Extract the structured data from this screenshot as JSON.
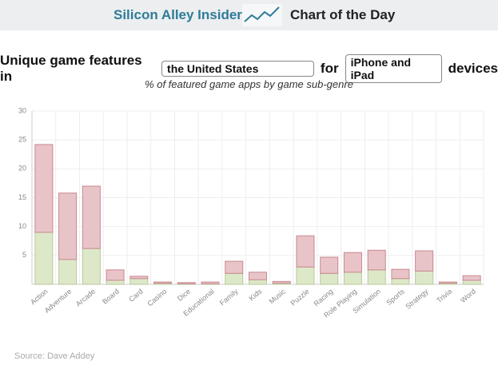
{
  "header": {
    "brand": "Silicon Alley Insider",
    "section": "Chart of the Day"
  },
  "chart_data": {
    "type": "bar",
    "stacked": true,
    "title": [
      "Unique game features in",
      "the United States",
      "for",
      "iPhone and iPad",
      "devices"
    ],
    "subtitle": "% of featured game apps by game sub-genre",
    "categories": [
      "Action",
      "Adventure",
      "Arcade",
      "Board",
      "Card",
      "Casino",
      "Dice",
      "Educational",
      "Family",
      "Kids",
      "Music",
      "Puzzle",
      "Racing",
      "Role Playing",
      "Simulation",
      "Sports",
      "Strategy",
      "Trivia",
      "Word"
    ],
    "series": [
      {
        "color": "#dde8c8",
        "values": [
          9.0,
          4.3,
          6.2,
          0.7,
          1.0,
          0.2,
          0.1,
          0.1,
          1.9,
          0.8,
          0.2,
          3.0,
          1.9,
          2.1,
          2.5,
          1.0,
          2.3,
          0.2,
          0.7
        ]
      },
      {
        "color": "#e8c4c8",
        "values": [
          15.2,
          11.5,
          10.8,
          1.8,
          0.4,
          0.2,
          0.2,
          0.3,
          2.1,
          1.3,
          0.3,
          5.4,
          2.8,
          3.4,
          3.4,
          1.6,
          3.5,
          0.2,
          0.8
        ]
      }
    ],
    "ylim": [
      0,
      30
    ],
    "yticks": [
      5,
      10,
      15,
      20,
      25,
      30
    ],
    "grid": true
  },
  "source": "Source: Dave Addey"
}
